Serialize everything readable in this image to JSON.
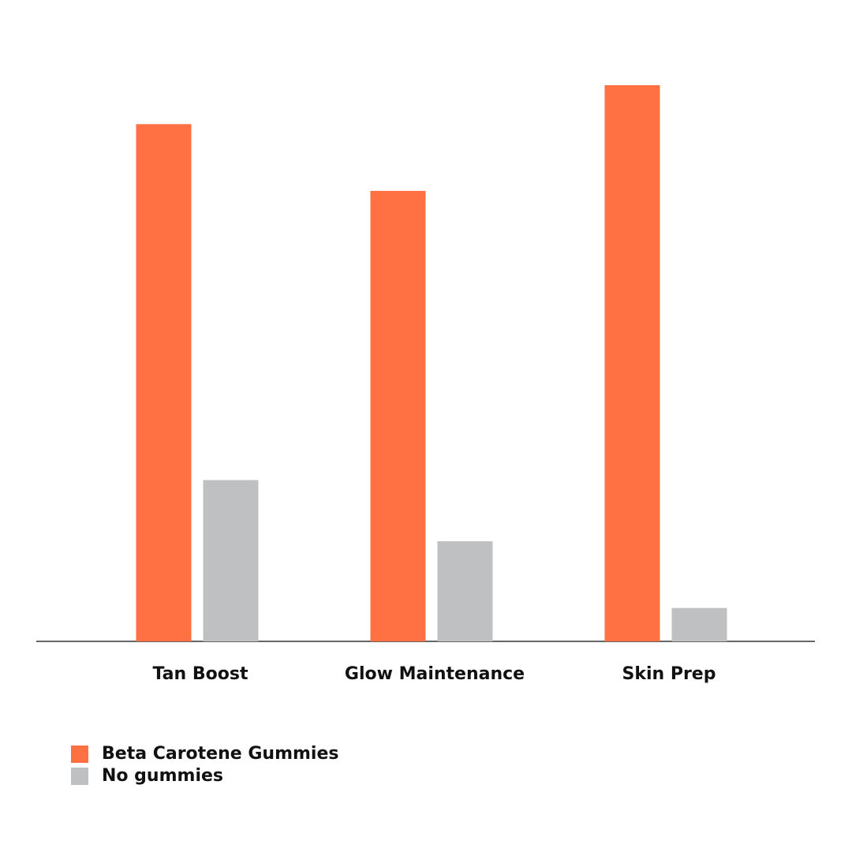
{
  "chart_data": {
    "type": "bar",
    "categories": [
      "Tan Boost",
      "Glow Maintenance",
      "Skin Prep"
    ],
    "series": [
      {
        "name": "Beta Carotene Gummies",
        "color": "#ff7043",
        "values": [
          93,
          81,
          100
        ]
      },
      {
        "name": "No gummies",
        "color": "#bfc0c2",
        "values": [
          29,
          18,
          6
        ]
      }
    ],
    "ylim": [
      0,
      100
    ],
    "legend": "bottom-left"
  }
}
